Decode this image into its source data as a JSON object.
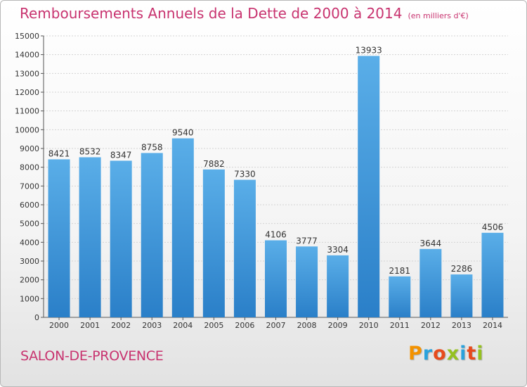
{
  "header": {
    "title": "Remboursements Annuels de la Dette de 2000 à 2014",
    "unit": "(en milliers d'€)"
  },
  "footer": {
    "city": "SALON-DE-PROVENCE",
    "logo": {
      "letters": [
        "P",
        "r",
        "o",
        "x",
        "i",
        "t",
        "i"
      ],
      "colors": [
        "#f39200",
        "#2aa2dc",
        "#e74a1c",
        "#95c11f",
        "#2aa2dc",
        "#e74a1c",
        "#95c11f"
      ]
    }
  },
  "colors": {
    "bar_top": "#5aaee8",
    "bar_bottom": "#2a7fc8",
    "accent": "#c8336f",
    "grid": "#d4d4d4",
    "axis": "#555555"
  },
  "chart_data": {
    "type": "bar",
    "title": "Remboursements Annuels de la Dette de 2000 à 2014",
    "subtitle": "(en milliers d'€)",
    "categories": [
      "2000",
      "2001",
      "2002",
      "2003",
      "2004",
      "2005",
      "2006",
      "2007",
      "2008",
      "2009",
      "2010",
      "2011",
      "2012",
      "2013",
      "2014"
    ],
    "values": [
      8421,
      8532,
      8347,
      8758,
      9540,
      7882,
      7330,
      4106,
      3777,
      3304,
      13933,
      2181,
      3644,
      2286,
      4506
    ],
    "ylim": [
      0,
      15000
    ],
    "yticks": [
      0,
      1000,
      2000,
      3000,
      4000,
      5000,
      6000,
      7000,
      8000,
      9000,
      10000,
      11000,
      12000,
      13000,
      14000,
      15000
    ],
    "grid": true,
    "legend": "none",
    "xlabel": "",
    "ylabel": ""
  }
}
